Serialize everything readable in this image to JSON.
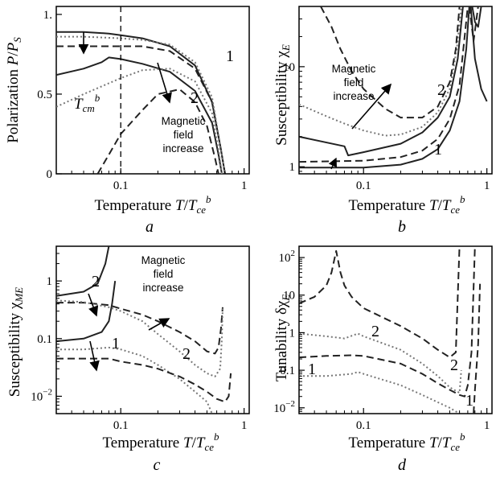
{
  "colors": {
    "line": "#222222",
    "dotted": "#777777"
  },
  "chart_data": [
    {
      "type": "line",
      "panel_label": "a",
      "xscale": "log",
      "yscale": "linear",
      "xlim": [
        0.03,
        1.1
      ],
      "ylim": [
        0,
        1.05
      ],
      "xticks": [
        {
          "v": 0.1,
          "t": "0.1"
        },
        {
          "v": 1,
          "t": "1"
        }
      ],
      "yticks": [
        {
          "v": 0,
          "t": "0"
        },
        {
          "v": 0.5,
          "t": "0.5"
        },
        {
          "v": 1,
          "t": "1."
        }
      ],
      "xlabel": "Temperature  T/T_ce^b",
      "ylabel": "Polarization  P/P_S",
      "annotations": [
        {
          "text": "T_cm^b"
        },
        {
          "text": "Magnetic"
        },
        {
          "text": "field"
        },
        {
          "text": "increase"
        }
      ],
      "curve_labels": [
        "1",
        "2"
      ],
      "vline_x": 0.1,
      "series": [
        {
          "style": "solid",
          "x": [
            0.03,
            0.05,
            0.08,
            0.1,
            0.15,
            0.25,
            0.4,
            0.55,
            0.65,
            0.7
          ],
          "y": [
            0.89,
            0.89,
            0.88,
            0.87,
            0.85,
            0.8,
            0.68,
            0.45,
            0.15,
            0
          ]
        },
        {
          "style": "dashed",
          "x": [
            0.03,
            0.05,
            0.1,
            0.15,
            0.25,
            0.4,
            0.55,
            0.65,
            0.7
          ],
          "y": [
            0.8,
            0.8,
            0.8,
            0.8,
            0.77,
            0.66,
            0.45,
            0.15,
            0
          ]
        },
        {
          "style": "dotted",
          "x": [
            0.03,
            0.05,
            0.1,
            0.15,
            0.25,
            0.4,
            0.55,
            0.65,
            0.7
          ],
          "y": [
            0.86,
            0.86,
            0.85,
            0.84,
            0.81,
            0.7,
            0.48,
            0.15,
            0
          ]
        },
        {
          "style": "solid",
          "x": [
            0.03,
            0.05,
            0.07,
            0.08,
            0.1,
            0.15,
            0.25,
            0.4,
            0.55,
            0.62,
            0.66
          ],
          "y": [
            0.62,
            0.66,
            0.7,
            0.73,
            0.72,
            0.69,
            0.64,
            0.52,
            0.32,
            0.12,
            0
          ]
        },
        {
          "style": "dotted",
          "x": [
            0.03,
            0.05,
            0.1,
            0.15,
            0.25,
            0.4,
            0.55,
            0.62,
            0.66
          ],
          "y": [
            0.42,
            0.5,
            0.6,
            0.65,
            0.66,
            0.58,
            0.38,
            0.15,
            0
          ]
        },
        {
          "style": "dashed",
          "x": [
            0.065,
            0.08,
            0.1,
            0.15,
            0.2,
            0.3,
            0.4,
            0.5,
            0.58,
            0.62
          ],
          "y": [
            0,
            0.12,
            0.25,
            0.4,
            0.5,
            0.53,
            0.45,
            0.3,
            0.1,
            0
          ]
        }
      ]
    },
    {
      "type": "line",
      "panel_label": "b",
      "xscale": "log",
      "yscale": "log",
      "xlim": [
        0.03,
        1.1
      ],
      "ylim": [
        0.85,
        40
      ],
      "xticks": [
        {
          "v": 0.1,
          "t": "0.1"
        },
        {
          "v": 1,
          "t": "1"
        }
      ],
      "yticks": [
        {
          "v": 1,
          "t": "1"
        },
        {
          "v": 10,
          "t": "10"
        }
      ],
      "xlabel": "Temperature  T/T_ce^b",
      "ylabel": "Susceptibility  χ_E",
      "annotations": [
        {
          "text": "Magnetic"
        },
        {
          "text": "field"
        },
        {
          "text": "increase"
        }
      ],
      "curve_labels": [
        "1",
        "2"
      ],
      "series": [
        {
          "style": "solid",
          "x": [
            0.03,
            0.1,
            0.2,
            0.3,
            0.4,
            0.5,
            0.6,
            0.68,
            0.72
          ],
          "y": [
            0.98,
            0.98,
            1.05,
            1.2,
            1.5,
            2.3,
            4.5,
            15,
            40
          ]
        },
        {
          "style": "dashed",
          "x": [
            0.03,
            0.1,
            0.2,
            0.3,
            0.4,
            0.5,
            0.6,
            0.66,
            0.7
          ],
          "y": [
            1.12,
            1.15,
            1.25,
            1.45,
            1.9,
            3,
            6.5,
            20,
            40
          ]
        },
        {
          "style": "solid",
          "x": [
            0.03,
            0.07,
            0.075,
            0.1,
            0.2,
            0.3,
            0.4,
            0.5,
            0.58,
            0.64
          ],
          "y": [
            2.0,
            1.6,
            1.3,
            1.4,
            1.7,
            2.2,
            3.1,
            5,
            12,
            40
          ]
        },
        {
          "style": "dotted",
          "x": [
            0.03,
            0.05,
            0.07,
            0.1,
            0.15,
            0.2,
            0.3,
            0.4,
            0.5,
            0.57,
            0.62
          ],
          "y": [
            4.2,
            3.2,
            2.7,
            2.3,
            2.05,
            2.1,
            2.5,
            3.5,
            6,
            15,
            40
          ]
        },
        {
          "style": "dashed",
          "x": [
            0.045,
            0.055,
            0.065,
            0.08,
            0.1,
            0.15,
            0.2,
            0.3,
            0.4,
            0.5,
            0.56,
            0.6
          ],
          "y": [
            40,
            25,
            15,
            9,
            6,
            3.8,
            3.1,
            3.1,
            4,
            7,
            15,
            40
          ]
        },
        {
          "style": "solid",
          "x": [
            0.74,
            0.8,
            0.9,
            1.0
          ],
          "y": [
            40,
            12,
            6,
            4.5
          ]
        },
        {
          "style": "solid",
          "x": [
            0.76,
            0.8,
            0.85,
            0.9
          ],
          "y": [
            40,
            28,
            25,
            40
          ]
        },
        {
          "style": "dashed",
          "x": [
            0.72,
            0.78,
            0.85
          ],
          "y": [
            40,
            18,
            40
          ]
        }
      ]
    },
    {
      "type": "line",
      "panel_label": "c",
      "xscale": "log",
      "yscale": "log",
      "xlim": [
        0.03,
        1.1
      ],
      "ylim": [
        0.005,
        4
      ],
      "xticks": [
        {
          "v": 0.1,
          "t": "0.1"
        },
        {
          "v": 1,
          "t": "1"
        }
      ],
      "yticks": [
        {
          "v": 0.01,
          "t": "10^-2"
        },
        {
          "v": 0.1,
          "t": "0.1"
        },
        {
          "v": 1,
          "t": "1"
        }
      ],
      "xlabel": "Temperature  T/T_ce^b",
      "ylabel": "Susceptibility  χ_ME",
      "annotations": [
        {
          "text": "Magnetic"
        },
        {
          "text": "field"
        },
        {
          "text": "increase"
        }
      ],
      "curve_labels": [
        "2",
        "1",
        "2"
      ],
      "series": [
        {
          "style": "solid",
          "x": [
            0.03,
            0.05,
            0.065,
            0.075,
            0.08
          ],
          "y": [
            0.55,
            0.65,
            0.9,
            2,
            4
          ]
        },
        {
          "style": "solid",
          "x": [
            0.03,
            0.05,
            0.07,
            0.08,
            0.085,
            0.09
          ],
          "y": [
            0.09,
            0.1,
            0.13,
            0.2,
            0.4,
            1
          ]
        },
        {
          "style": "dashed",
          "x": [
            0.03,
            0.05,
            0.08,
            0.1,
            0.15,
            0.2,
            0.3,
            0.4,
            0.5,
            0.58,
            0.62,
            0.65,
            0.67
          ],
          "y": [
            0.42,
            0.42,
            0.38,
            0.33,
            0.26,
            0.2,
            0.13,
            0.09,
            0.06,
            0.055,
            0.07,
            0.15,
            0.35
          ]
        },
        {
          "style": "dotted",
          "x": [
            0.03,
            0.05,
            0.08,
            0.1,
            0.15,
            0.2,
            0.3,
            0.4,
            0.5,
            0.58,
            0.64,
            0.66,
            0.67
          ],
          "y": [
            0.46,
            0.43,
            0.35,
            0.3,
            0.2,
            0.12,
            0.06,
            0.035,
            0.025,
            0.022,
            0.03,
            0.1,
            0.35
          ]
        },
        {
          "style": "dotted",
          "x": [
            0.03,
            0.05,
            0.08,
            0.1,
            0.15,
            0.2,
            0.3,
            0.4,
            0.5,
            0.55
          ],
          "y": [
            0.065,
            0.065,
            0.07,
            0.065,
            0.05,
            0.035,
            0.02,
            0.012,
            0.008,
            0.005
          ]
        },
        {
          "style": "dashed",
          "x": [
            0.03,
            0.05,
            0.08,
            0.1,
            0.15,
            0.2,
            0.3,
            0.4,
            0.5,
            0.6,
            0.7,
            0.75,
            0.78
          ],
          "y": [
            0.045,
            0.045,
            0.045,
            0.04,
            0.035,
            0.03,
            0.022,
            0.016,
            0.012,
            0.009,
            0.008,
            0.01,
            0.025
          ]
        }
      ]
    },
    {
      "type": "line",
      "panel_label": "d",
      "xscale": "log",
      "yscale": "log",
      "xlim": [
        0.03,
        1.1
      ],
      "ylim": [
        0.007,
        200
      ],
      "xticks": [
        {
          "v": 0.1,
          "t": "0.1"
        },
        {
          "v": 1,
          "t": "1"
        }
      ],
      "yticks": [
        {
          "v": 0.01,
          "t": "10^-2"
        },
        {
          "v": 0.1,
          "t": "0.1"
        },
        {
          "v": 1,
          "t": "1"
        },
        {
          "v": 10,
          "t": "10"
        },
        {
          "v": 100,
          "t": "10^2"
        }
      ],
      "xlabel": "Temperature  T/T_ce^b",
      "ylabel": "Tunability  δχ_E",
      "curve_labels": [
        "2",
        "1",
        "2",
        "1"
      ],
      "series": [
        {
          "style": "dashed",
          "x": [
            0.03,
            0.04,
            0.05,
            0.055,
            0.06,
            0.065,
            0.07,
            0.08,
            0.1,
            0.2,
            0.3,
            0.4,
            0.5,
            0.56,
            0.6
          ],
          "y": [
            6,
            9,
            18,
            40,
            150,
            40,
            18,
            9,
            4.5,
            1.5,
            0.7,
            0.35,
            0.22,
            0.3,
            200
          ]
        },
        {
          "style": "dotted",
          "x": [
            0.03,
            0.05,
            0.07,
            0.09,
            0.1,
            0.2,
            0.3,
            0.4,
            0.5,
            0.6,
            0.62
          ],
          "y": [
            0.95,
            0.8,
            0.7,
            0.95,
            0.8,
            0.35,
            0.15,
            0.07,
            0.035,
            0.025,
            0.1
          ]
        },
        {
          "style": "dashed",
          "x": [
            0.03,
            0.05,
            0.08,
            0.1,
            0.2,
            0.3,
            0.4,
            0.5,
            0.6,
            0.66,
            0.7,
            0.75,
            0.8
          ],
          "y": [
            0.22,
            0.24,
            0.25,
            0.24,
            0.15,
            0.08,
            0.045,
            0.03,
            0.022,
            0.02,
            0.04,
            0.3,
            200
          ]
        },
        {
          "style": "dotted",
          "x": [
            0.03,
            0.05,
            0.08,
            0.09,
            0.1,
            0.2,
            0.3,
            0.4,
            0.5,
            0.6
          ],
          "y": [
            0.07,
            0.07,
            0.08,
            0.09,
            0.08,
            0.04,
            0.022,
            0.014,
            0.01,
            0.007
          ]
        },
        {
          "style": "dashed",
          "x": [
            0.78,
            0.8,
            0.85,
            0.88
          ],
          "y": [
            0.007,
            0.03,
            0.5,
            20
          ]
        }
      ]
    }
  ]
}
